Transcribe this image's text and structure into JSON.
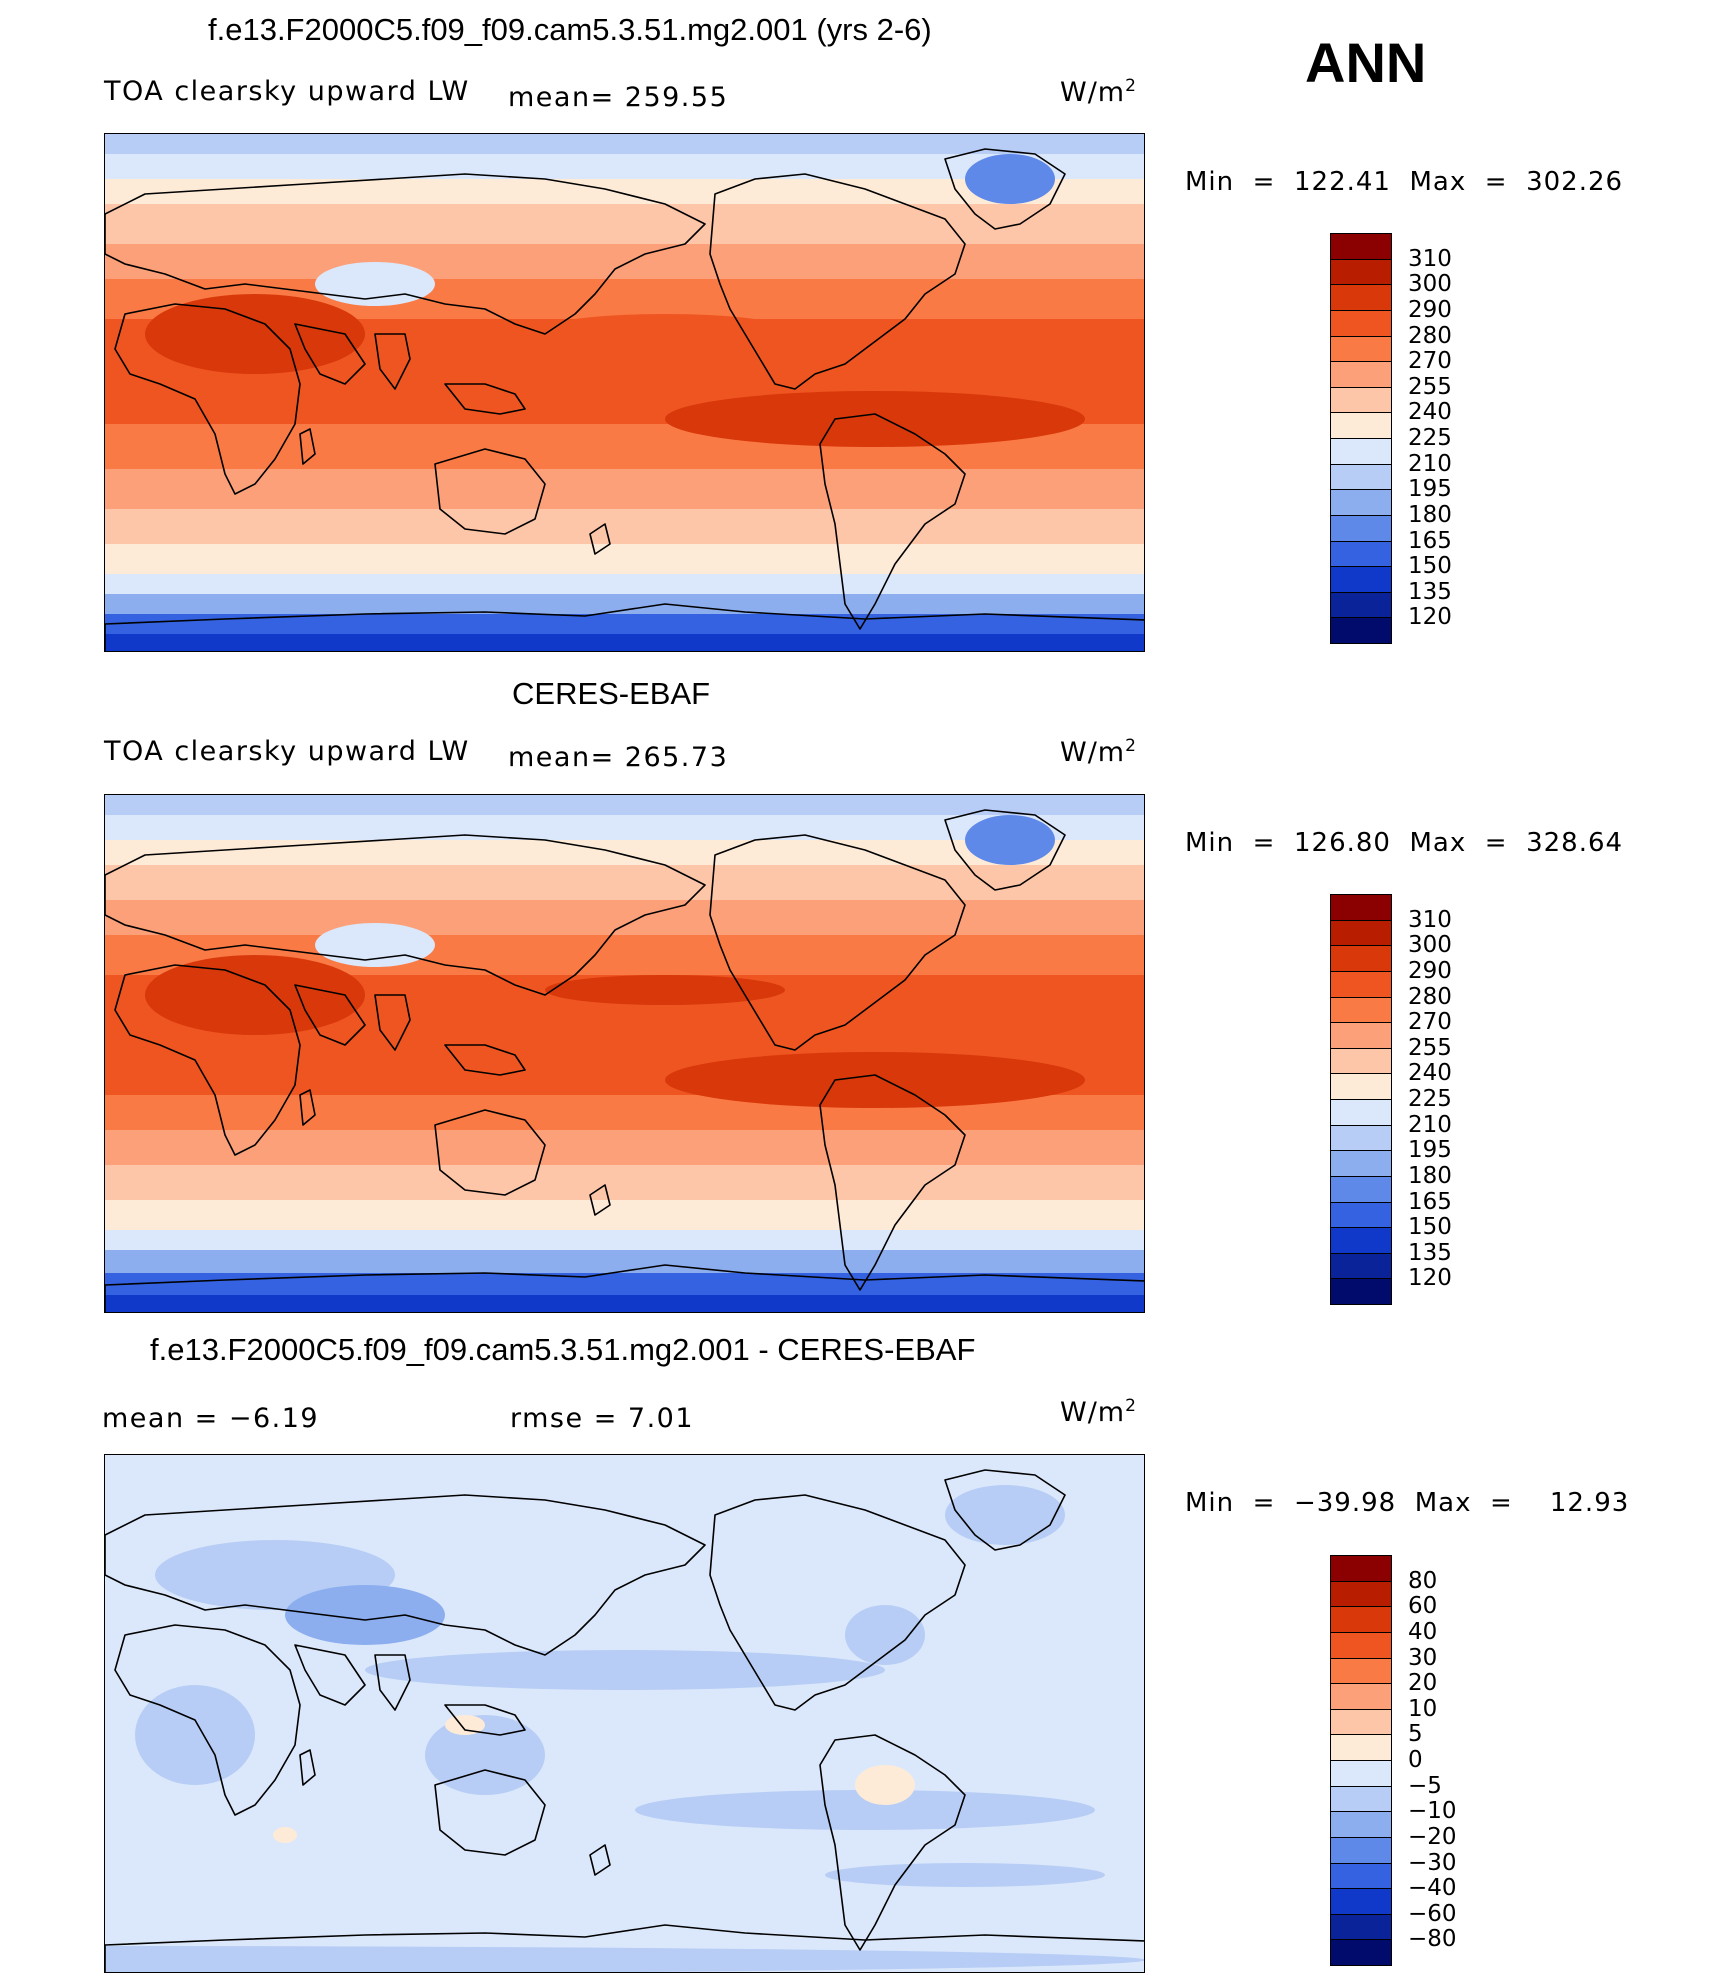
{
  "season": "ANN",
  "panels": [
    {
      "id": "model",
      "title": "f.e13.F2000C5.f09_f09.cam5.3.51.mg2.001 (yrs 2-6)",
      "variable": "TOA clearsky upward LW",
      "stat_left": "",
      "stat_mid": "mean=  259.55",
      "units": "W/m",
      "units_exp": "2",
      "minmax": "Min  =  122.41  Max  =  302.26",
      "min": 122.41,
      "max": 302.26,
      "mean": 259.55,
      "kind": "abs"
    },
    {
      "id": "obs",
      "title": "CERES-EBAF",
      "variable": "TOA clearsky upward LW",
      "stat_left": "",
      "stat_mid": "mean=  265.73",
      "units": "W/m",
      "units_exp": "2",
      "minmax": "Min  =  126.80  Max  =  328.64",
      "min": 126.8,
      "max": 328.64,
      "mean": 265.73,
      "kind": "abs"
    },
    {
      "id": "diff",
      "title": "f.e13.F2000C5.f09_f09.cam5.3.51.mg2.001 - CERES-EBAF",
      "variable": "mean  =    −6.19",
      "stat_left": "",
      "stat_mid": "rmse  =     7.01",
      "units": "W/m",
      "units_exp": "2",
      "minmax": "Min  =  −39.98  Max  =    12.93",
      "min": -39.98,
      "max": 12.93,
      "mean": -6.19,
      "rmse": 7.01,
      "kind": "diff"
    }
  ],
  "colorbars": {
    "abs": {
      "levels": [
        "310",
        "300",
        "290",
        "280",
        "270",
        "255",
        "240",
        "225",
        "210",
        "195",
        "180",
        "165",
        "150",
        "135",
        "120"
      ],
      "colors": [
        "#8b0000",
        "#b81d00",
        "#d8380a",
        "#ef5520",
        "#fa7a45",
        "#fca07a",
        "#fdc6a8",
        "#fdebd8",
        "#dbe8fb",
        "#b7cdf5",
        "#8cadee",
        "#5e89e8",
        "#3462e0",
        "#1038c9",
        "#0a2399",
        "#000b6c"
      ]
    },
    "diff": {
      "levels": [
        "80",
        "60",
        "40",
        "30",
        "20",
        "10",
        "5",
        "0",
        "−5",
        "−10",
        "−20",
        "−30",
        "−40",
        "−60",
        "−80"
      ],
      "colors": [
        "#8b0000",
        "#b81d00",
        "#d8380a",
        "#ef5520",
        "#fa7a45",
        "#fca07a",
        "#fdc6a8",
        "#fdebd8",
        "#dbe8fb",
        "#b7cdf5",
        "#8cadee",
        "#5e89e8",
        "#3462e0",
        "#1038c9",
        "#0a2399",
        "#000b6c"
      ]
    }
  }
}
